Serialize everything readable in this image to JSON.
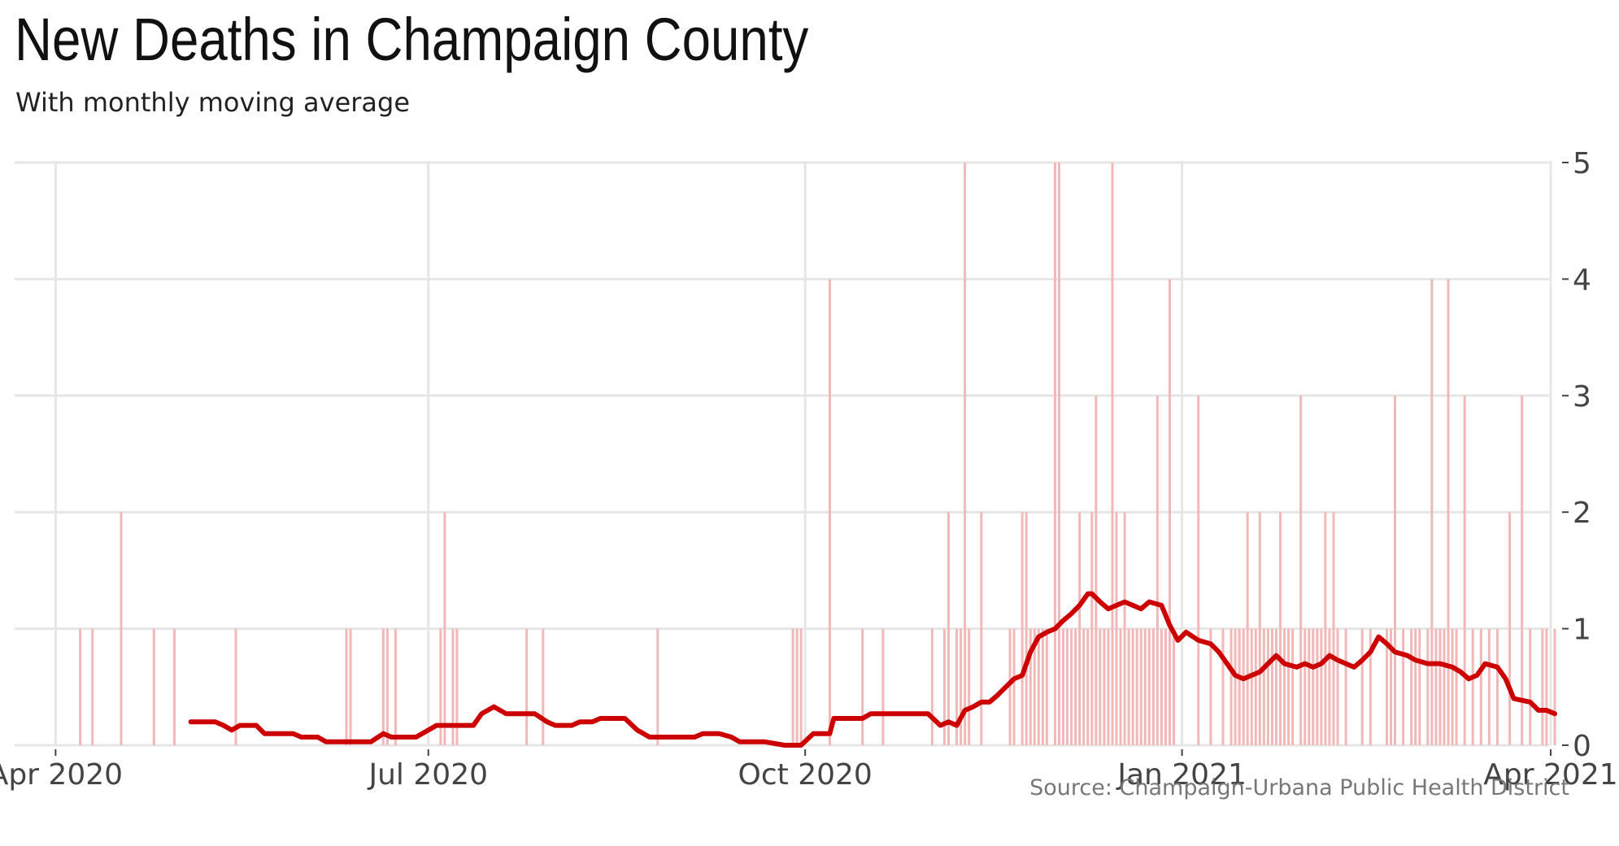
{
  "chart_data": {
    "type": "bar",
    "title": "New Deaths in Champaign County",
    "subtitle": "With monthly moving average",
    "source": "Source: Champaign-Urbana Public Health District",
    "xlabel": "",
    "ylabel": "",
    "x_range": [
      "2020-03-22",
      "2021-04-02"
    ],
    "ylim": [
      0,
      5
    ],
    "y_ticks": [
      {
        "value": 0,
        "label": "0"
      },
      {
        "value": 1,
        "label": "1"
      },
      {
        "value": 2,
        "label": "2"
      },
      {
        "value": 3,
        "label": "3"
      },
      {
        "value": 4,
        "label": "4"
      },
      {
        "value": 5,
        "label": "5"
      }
    ],
    "x_ticks": [
      {
        "date": "2020-04-01",
        "label": "Apr 2020"
      },
      {
        "date": "2020-07-01",
        "label": "Jul 2020"
      },
      {
        "date": "2020-10-01",
        "label": "Oct 2020"
      },
      {
        "date": "2021-01-01",
        "label": "Jan 2021"
      },
      {
        "date": "2021-04-01",
        "label": "Apr 2021"
      }
    ],
    "grid": true,
    "y_axis_position": "right",
    "series": [
      {
        "type": "bar",
        "color": "#f2b8b8",
        "points": [
          [
            "2020-04-07",
            1
          ],
          [
            "2020-04-10",
            1
          ],
          [
            "2020-04-17",
            2
          ],
          [
            "2020-04-25",
            1
          ],
          [
            "2020-04-30",
            1
          ],
          [
            "2020-05-15",
            1
          ],
          [
            "2020-06-11",
            1
          ],
          [
            "2020-06-12",
            1
          ],
          [
            "2020-06-20",
            1
          ],
          [
            "2020-06-21",
            1
          ],
          [
            "2020-06-23",
            1
          ],
          [
            "2020-07-04",
            1
          ],
          [
            "2020-07-05",
            2
          ],
          [
            "2020-07-07",
            1
          ],
          [
            "2020-07-08",
            1
          ],
          [
            "2020-07-25",
            1
          ],
          [
            "2020-07-29",
            1
          ],
          [
            "2020-08-26",
            1
          ],
          [
            "2020-09-28",
            1
          ],
          [
            "2020-09-29",
            1
          ],
          [
            "2020-09-30",
            1
          ],
          [
            "2020-10-07",
            4
          ],
          [
            "2020-10-15",
            1
          ],
          [
            "2020-10-20",
            1
          ],
          [
            "2020-11-01",
            1
          ],
          [
            "2020-11-04",
            1
          ],
          [
            "2020-11-05",
            2
          ],
          [
            "2020-11-07",
            1
          ],
          [
            "2020-11-08",
            1
          ],
          [
            "2020-11-09",
            5
          ],
          [
            "2020-11-10",
            1
          ],
          [
            "2020-11-13",
            2
          ],
          [
            "2020-11-20",
            1
          ],
          [
            "2020-11-21",
            1
          ],
          [
            "2020-11-23",
            2
          ],
          [
            "2020-11-24",
            2
          ],
          [
            "2020-11-25",
            1
          ],
          [
            "2020-11-26",
            1
          ],
          [
            "2020-11-27",
            1
          ],
          [
            "2020-11-28",
            1
          ],
          [
            "2020-11-29",
            1
          ],
          [
            "2020-12-01",
            5
          ],
          [
            "2020-12-02",
            5
          ],
          [
            "2020-12-03",
            1
          ],
          [
            "2020-12-04",
            1
          ],
          [
            "2020-12-05",
            1
          ],
          [
            "2020-12-06",
            1
          ],
          [
            "2020-12-07",
            2
          ],
          [
            "2020-12-08",
            1
          ],
          [
            "2020-12-09",
            1
          ],
          [
            "2020-12-10",
            2
          ],
          [
            "2020-12-11",
            3
          ],
          [
            "2020-12-12",
            1
          ],
          [
            "2020-12-13",
            1
          ],
          [
            "2020-12-14",
            1
          ],
          [
            "2020-12-15",
            5
          ],
          [
            "2020-12-16",
            2
          ],
          [
            "2020-12-17",
            1
          ],
          [
            "2020-12-18",
            2
          ],
          [
            "2020-12-19",
            1
          ],
          [
            "2020-12-20",
            1
          ],
          [
            "2020-12-21",
            1
          ],
          [
            "2020-12-22",
            1
          ],
          [
            "2020-12-23",
            1
          ],
          [
            "2020-12-24",
            1
          ],
          [
            "2020-12-25",
            1
          ],
          [
            "2020-12-26",
            3
          ],
          [
            "2020-12-27",
            1
          ],
          [
            "2020-12-28",
            1
          ],
          [
            "2020-12-29",
            4
          ],
          [
            "2020-12-30",
            1
          ],
          [
            "2021-01-05",
            3
          ],
          [
            "2021-01-08",
            1
          ],
          [
            "2021-01-11",
            1
          ],
          [
            "2021-01-13",
            1
          ],
          [
            "2021-01-14",
            1
          ],
          [
            "2021-01-15",
            1
          ],
          [
            "2021-01-16",
            1
          ],
          [
            "2021-01-17",
            2
          ],
          [
            "2021-01-18",
            1
          ],
          [
            "2021-01-19",
            1
          ],
          [
            "2021-01-20",
            2
          ],
          [
            "2021-01-21",
            1
          ],
          [
            "2021-01-22",
            1
          ],
          [
            "2021-01-23",
            1
          ],
          [
            "2021-01-24",
            1
          ],
          [
            "2021-01-25",
            2
          ],
          [
            "2021-01-26",
            1
          ],
          [
            "2021-01-27",
            1
          ],
          [
            "2021-01-28",
            1
          ],
          [
            "2021-01-30",
            3
          ],
          [
            "2021-01-31",
            1
          ],
          [
            "2021-02-01",
            1
          ],
          [
            "2021-02-02",
            1
          ],
          [
            "2021-02-03",
            1
          ],
          [
            "2021-02-04",
            1
          ],
          [
            "2021-02-05",
            2
          ],
          [
            "2021-02-06",
            1
          ],
          [
            "2021-02-07",
            2
          ],
          [
            "2021-02-08",
            1
          ],
          [
            "2021-02-10",
            1
          ],
          [
            "2021-02-14",
            1
          ],
          [
            "2021-02-16",
            1
          ],
          [
            "2021-02-20",
            1
          ],
          [
            "2021-02-21",
            1
          ],
          [
            "2021-02-22",
            3
          ],
          [
            "2021-02-24",
            1
          ],
          [
            "2021-02-26",
            1
          ],
          [
            "2021-02-27",
            1
          ],
          [
            "2021-02-28",
            1
          ],
          [
            "2021-03-02",
            1
          ],
          [
            "2021-03-03",
            4
          ],
          [
            "2021-03-04",
            1
          ],
          [
            "2021-03-05",
            1
          ],
          [
            "2021-03-06",
            1
          ],
          [
            "2021-03-07",
            4
          ],
          [
            "2021-03-08",
            1
          ],
          [
            "2021-03-09",
            1
          ],
          [
            "2021-03-11",
            3
          ],
          [
            "2021-03-13",
            1
          ],
          [
            "2021-03-15",
            1
          ],
          [
            "2021-03-17",
            1
          ],
          [
            "2021-03-19",
            1
          ],
          [
            "2021-03-22",
            2
          ],
          [
            "2021-03-25",
            3
          ],
          [
            "2021-03-27",
            1
          ],
          [
            "2021-03-30",
            1
          ],
          [
            "2021-03-31",
            1
          ],
          [
            "2021-04-02",
            1
          ]
        ]
      },
      {
        "type": "line",
        "color": "#cc0000",
        "points": [
          [
            "2020-05-04",
            0.2
          ],
          [
            "2020-05-10",
            0.2
          ],
          [
            "2020-05-12",
            0.17
          ],
          [
            "2020-05-14",
            0.13
          ],
          [
            "2020-05-16",
            0.17
          ],
          [
            "2020-05-20",
            0.17
          ],
          [
            "2020-05-22",
            0.1
          ],
          [
            "2020-05-29",
            0.1
          ],
          [
            "2020-05-31",
            0.07
          ],
          [
            "2020-06-04",
            0.07
          ],
          [
            "2020-06-06",
            0.03
          ],
          [
            "2020-06-17",
            0.03
          ],
          [
            "2020-06-20",
            0.1
          ],
          [
            "2020-06-22",
            0.07
          ],
          [
            "2020-06-28",
            0.07
          ],
          [
            "2020-07-01",
            0.13
          ],
          [
            "2020-07-03",
            0.17
          ],
          [
            "2020-07-12",
            0.17
          ],
          [
            "2020-07-14",
            0.27
          ],
          [
            "2020-07-17",
            0.33
          ],
          [
            "2020-07-20",
            0.27
          ],
          [
            "2020-07-27",
            0.27
          ],
          [
            "2020-07-30",
            0.2
          ],
          [
            "2020-08-01",
            0.17
          ],
          [
            "2020-08-05",
            0.17
          ],
          [
            "2020-08-07",
            0.2
          ],
          [
            "2020-08-10",
            0.2
          ],
          [
            "2020-08-12",
            0.23
          ],
          [
            "2020-08-18",
            0.23
          ],
          [
            "2020-08-21",
            0.13
          ],
          [
            "2020-08-24",
            0.07
          ],
          [
            "2020-09-04",
            0.07
          ],
          [
            "2020-09-06",
            0.1
          ],
          [
            "2020-09-10",
            0.1
          ],
          [
            "2020-09-13",
            0.07
          ],
          [
            "2020-09-15",
            0.03
          ],
          [
            "2020-09-21",
            0.03
          ],
          [
            "2020-09-26",
            0.0
          ],
          [
            "2020-09-30",
            0.0
          ],
          [
            "2020-10-03",
            0.1
          ],
          [
            "2020-10-07",
            0.1
          ],
          [
            "2020-10-08",
            0.23
          ],
          [
            "2020-10-15",
            0.23
          ],
          [
            "2020-10-17",
            0.27
          ],
          [
            "2020-10-31",
            0.27
          ],
          [
            "2020-11-03",
            0.17
          ],
          [
            "2020-11-05",
            0.2
          ],
          [
            "2020-11-07",
            0.17
          ],
          [
            "2020-11-09",
            0.3
          ],
          [
            "2020-11-11",
            0.33
          ],
          [
            "2020-11-13",
            0.37
          ],
          [
            "2020-11-15",
            0.37
          ],
          [
            "2020-11-17",
            0.43
          ],
          [
            "2020-11-19",
            0.5
          ],
          [
            "2020-11-21",
            0.57
          ],
          [
            "2020-11-23",
            0.6
          ],
          [
            "2020-11-25",
            0.8
          ],
          [
            "2020-11-27",
            0.93
          ],
          [
            "2020-11-29",
            0.97
          ],
          [
            "2020-12-01",
            1.0
          ],
          [
            "2020-12-03",
            1.07
          ],
          [
            "2020-12-05",
            1.13
          ],
          [
            "2020-12-07",
            1.2
          ],
          [
            "2020-12-09",
            1.3
          ],
          [
            "2020-12-10",
            1.3
          ],
          [
            "2020-12-12",
            1.23
          ],
          [
            "2020-12-14",
            1.17
          ],
          [
            "2020-12-16",
            1.2
          ],
          [
            "2020-12-18",
            1.23
          ],
          [
            "2020-12-20",
            1.2
          ],
          [
            "2020-12-22",
            1.17
          ],
          [
            "2020-12-24",
            1.23
          ],
          [
            "2020-12-27",
            1.2
          ],
          [
            "2020-12-29",
            1.03
          ],
          [
            "2020-12-31",
            0.9
          ],
          [
            "2021-01-02",
            0.97
          ],
          [
            "2021-01-05",
            0.9
          ],
          [
            "2021-01-08",
            0.87
          ],
          [
            "2021-01-10",
            0.8
          ],
          [
            "2021-01-12",
            0.7
          ],
          [
            "2021-01-14",
            0.6
          ],
          [
            "2021-01-16",
            0.57
          ],
          [
            "2021-01-18",
            0.6
          ],
          [
            "2021-01-20",
            0.63
          ],
          [
            "2021-01-22",
            0.7
          ],
          [
            "2021-01-24",
            0.77
          ],
          [
            "2021-01-26",
            0.7
          ],
          [
            "2021-01-29",
            0.67
          ],
          [
            "2021-01-31",
            0.7
          ],
          [
            "2021-02-02",
            0.67
          ],
          [
            "2021-02-04",
            0.7
          ],
          [
            "2021-02-06",
            0.77
          ],
          [
            "2021-02-08",
            0.73
          ],
          [
            "2021-02-10",
            0.7
          ],
          [
            "2021-02-12",
            0.67
          ],
          [
            "2021-02-14",
            0.73
          ],
          [
            "2021-02-16",
            0.8
          ],
          [
            "2021-02-18",
            0.93
          ],
          [
            "2021-02-20",
            0.87
          ],
          [
            "2021-02-22",
            0.8
          ],
          [
            "2021-02-25",
            0.77
          ],
          [
            "2021-02-27",
            0.73
          ],
          [
            "2021-03-02",
            0.7
          ],
          [
            "2021-03-05",
            0.7
          ],
          [
            "2021-03-08",
            0.67
          ],
          [
            "2021-03-10",
            0.63
          ],
          [
            "2021-03-12",
            0.57
          ],
          [
            "2021-03-14",
            0.6
          ],
          [
            "2021-03-16",
            0.7
          ],
          [
            "2021-03-19",
            0.67
          ],
          [
            "2021-03-21",
            0.57
          ],
          [
            "2021-03-23",
            0.4
          ],
          [
            "2021-03-27",
            0.37
          ],
          [
            "2021-03-29",
            0.3
          ],
          [
            "2021-03-31",
            0.3
          ],
          [
            "2021-04-02",
            0.27
          ]
        ]
      }
    ]
  }
}
